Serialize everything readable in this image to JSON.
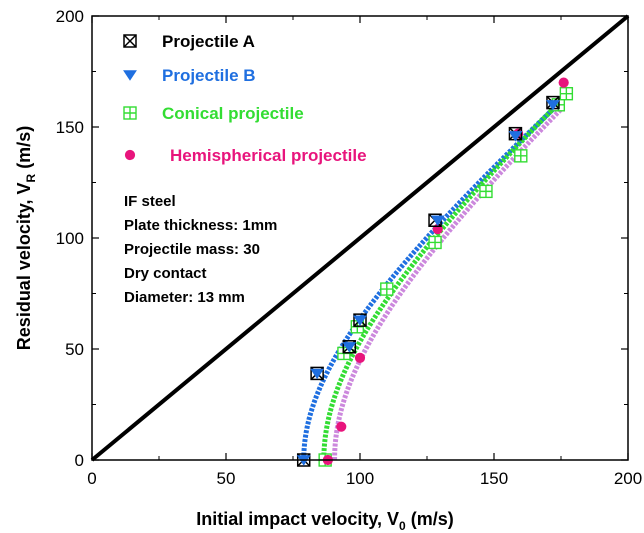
{
  "chart_data": {
    "type": "scatter",
    "xlabel": "Initial impact velocity, V",
    "xlabel_sub": "0",
    "xlabel_unit": " (m/s)",
    "ylabel": "Residual velocity, V",
    "ylabel_sub": "R",
    "ylabel_unit": " (m/s)",
    "xlim": [
      0,
      200
    ],
    "ylim": [
      0,
      200
    ],
    "xticks": [
      0,
      50,
      100,
      150,
      200
    ],
    "yticks": [
      0,
      50,
      100,
      150,
      200
    ],
    "grid": false,
    "legend_position": "top-left",
    "reference_line": {
      "x": [
        0,
        200
      ],
      "y": [
        0,
        200
      ],
      "color": "#000000"
    },
    "series": [
      {
        "name": "Projectile A",
        "marker": "boxed-x",
        "color": "#000000",
        "x": [
          79,
          84,
          96,
          100,
          128,
          158,
          172
        ],
        "y": [
          0,
          39,
          51,
          63,
          108,
          147,
          161
        ]
      },
      {
        "name": "Projectile B",
        "marker": "triangle-down",
        "color": "#1f6fe0",
        "x": [
          79,
          84,
          96,
          100,
          129,
          158,
          172
        ],
        "y": [
          0,
          39,
          51,
          63,
          108,
          146,
          160
        ]
      },
      {
        "name": "Conical projectile",
        "marker": "boxed-plus",
        "color": "#33dd33",
        "x": [
          87,
          94,
          99,
          110,
          128,
          147,
          160,
          174,
          177
        ],
        "y": [
          0,
          48,
          60,
          77,
          98,
          121,
          137,
          160,
          165
        ]
      },
      {
        "name": "Hemispherical projectile",
        "marker": "circle",
        "color": "#e8147c",
        "x": [
          88,
          93,
          100,
          129,
          159,
          176
        ],
        "y": [
          0,
          15,
          46,
          104,
          147,
          170
        ]
      }
    ],
    "fit_curves": [
      {
        "color": "#1f6fe0",
        "x0": 79,
        "x_end": 172,
        "y_end": 158
      },
      {
        "color": "#33dd33",
        "x0": 86.5,
        "x_end": 176,
        "y_end": 163
      },
      {
        "color": "#cc88dd",
        "x0": 90.5,
        "x_end": 175,
        "y_end": 158
      }
    ],
    "annotations": [
      "IF steel",
      "Plate thickness: 1mm",
      "Projectile mass: 30",
      "Dry contact",
      "Diameter: 13 mm"
    ]
  }
}
